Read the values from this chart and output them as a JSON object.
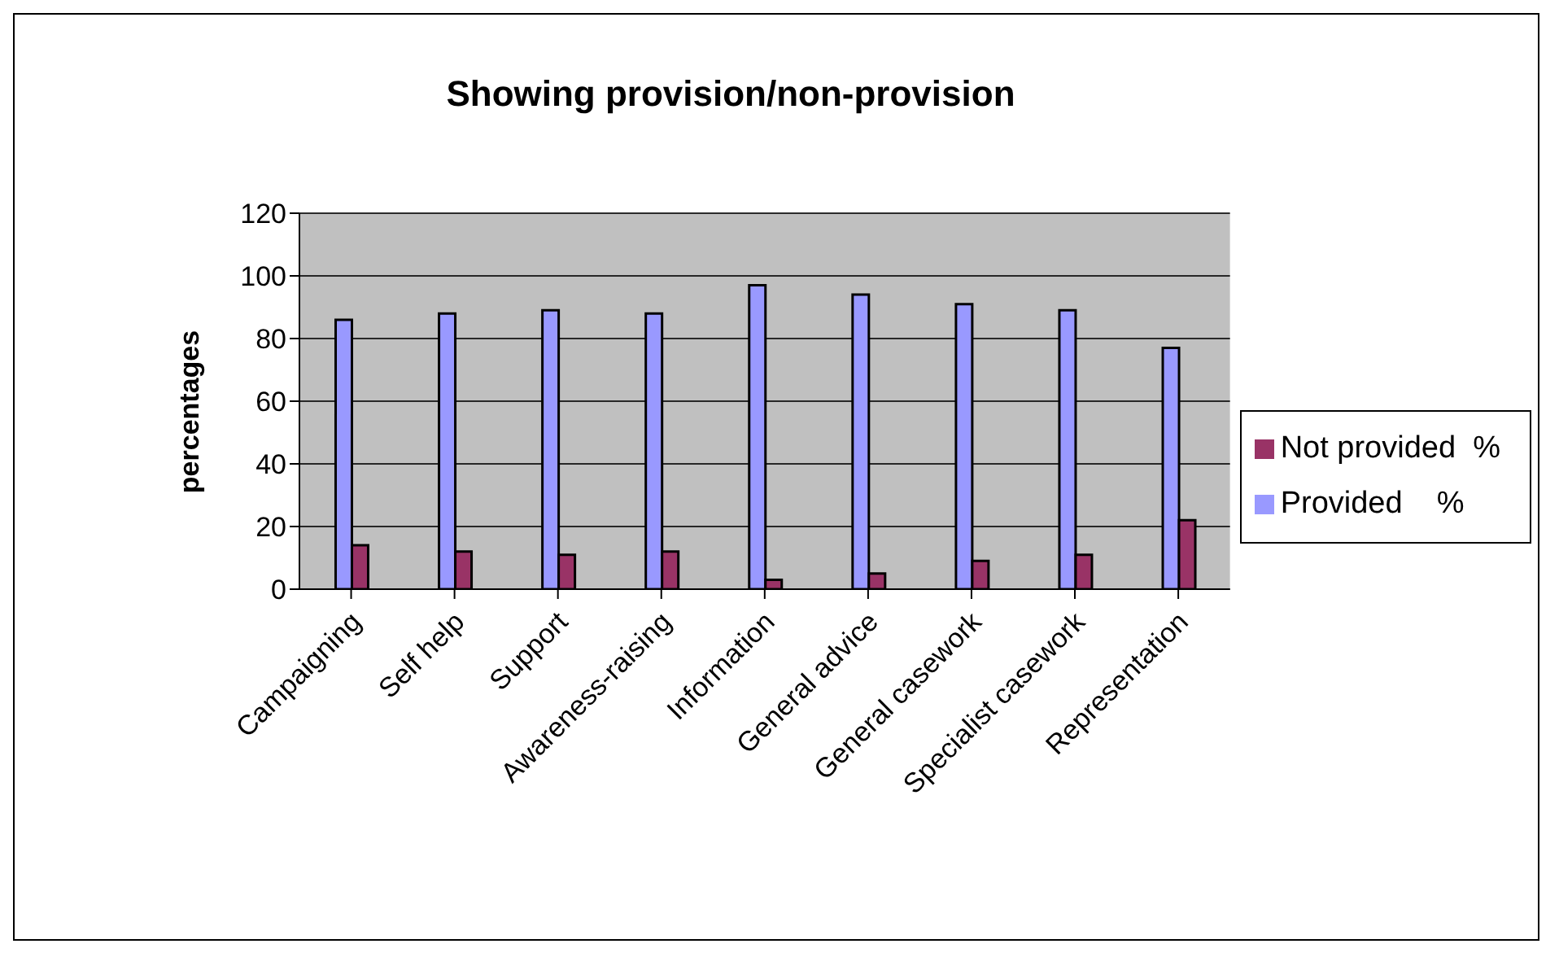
{
  "chart_data": {
    "type": "bar",
    "title": "Showing provision/non-provision",
    "ylabel": "percentages",
    "categories": [
      "Campaigning",
      "Self help",
      "Support",
      "Awareness-raising",
      "Information",
      "General advice",
      "General casework",
      "Specialist casework",
      "Representation"
    ],
    "series": [
      {
        "name": "Provided    %",
        "color": "#9999ff",
        "values": [
          86,
          88,
          89,
          88,
          97,
          94,
          91,
          89,
          77
        ]
      },
      {
        "name": "Not provided  %",
        "color": "#993366",
        "values": [
          14,
          12,
          11,
          12,
          3,
          5,
          9,
          11,
          22
        ]
      }
    ],
    "ylim": [
      0,
      120
    ],
    "yticks": [
      0,
      20,
      40,
      60,
      80,
      100,
      120
    ],
    "grid": "y",
    "legend": "right"
  }
}
